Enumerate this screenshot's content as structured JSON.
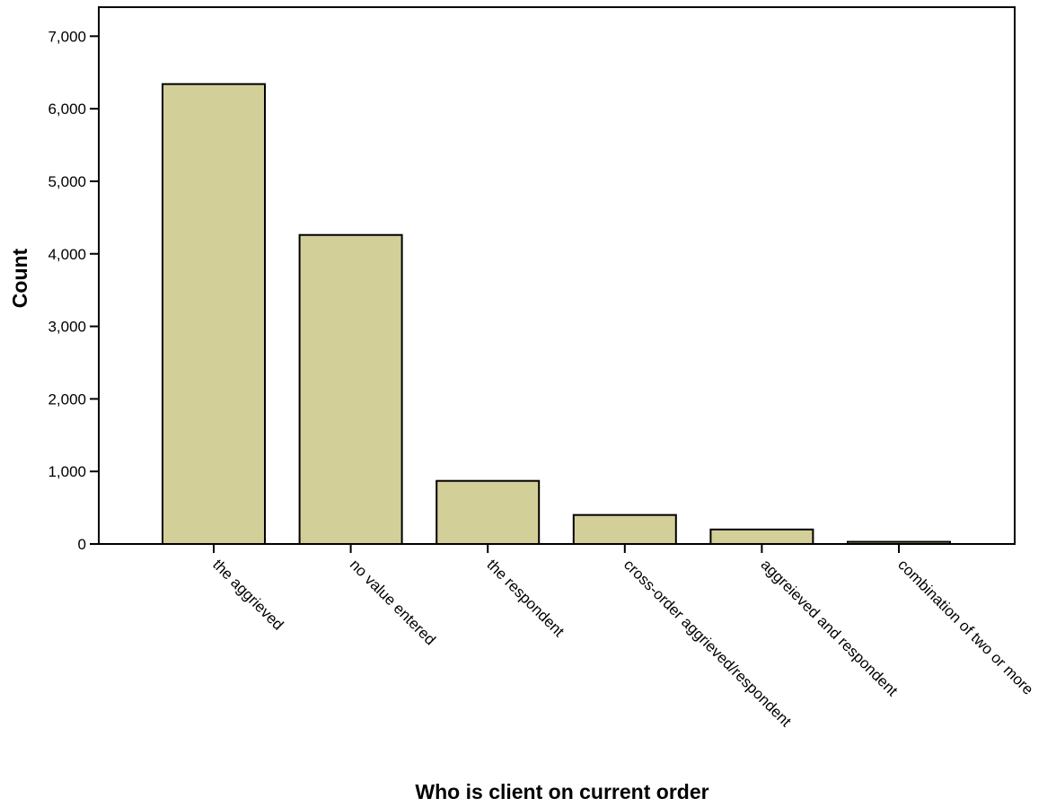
{
  "chart_data": {
    "type": "bar",
    "categories": [
      "the aggrieved",
      "no value entered",
      "the respondent",
      "cross-order aggrieved/respondent",
      "aggreieved and respondent",
      "combination of two or more"
    ],
    "values": [
      6340,
      4260,
      870,
      400,
      200,
      30
    ],
    "xlabel": "Who is client on current order",
    "ylabel": "Count",
    "ylim": [
      0,
      7000
    ],
    "yticks": [
      0,
      1000,
      2000,
      3000,
      4000,
      5000,
      6000,
      7000
    ],
    "ytick_labels": [
      "0",
      "1,000",
      "2,000",
      "3,000",
      "4,000",
      "5,000",
      "6,000",
      "7,000"
    ],
    "bar_color": "#d3cf98",
    "grid": false,
    "legend": "none"
  }
}
